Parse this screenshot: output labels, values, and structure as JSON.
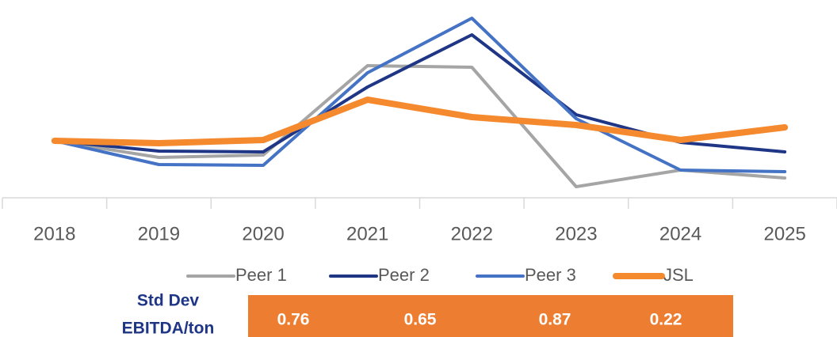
{
  "chart_data": {
    "type": "line",
    "categories": [
      "2018",
      "2019",
      "2020",
      "2021",
      "2022",
      "2023",
      "2024",
      "2025"
    ],
    "series": [
      {
        "name": "Peer 1",
        "color": "#a5a5a5",
        "values": [
          72,
          51,
          54,
          167,
          165,
          14,
          35,
          25
        ]
      },
      {
        "name": "Peer 2",
        "color": "#1f3687",
        "values": [
          72,
          59,
          58,
          140,
          206,
          105,
          70,
          58
        ]
      },
      {
        "name": "Peer 3",
        "color": "#4472c4",
        "values": [
          72,
          42,
          41,
          158,
          227,
          100,
          35,
          33
        ]
      },
      {
        "name": "JSL",
        "color": "#f5892e",
        "values": [
          72,
          69,
          73,
          124,
          102,
          92,
          73,
          89
        ]
      }
    ],
    "ylim": [
      0,
      235
    ],
    "grid": false,
    "legend": "bottom"
  },
  "table": {
    "row_label": [
      "Std Dev",
      "EBITDA/ton"
    ],
    "values": [
      0.76,
      0.65,
      0.87,
      0.22
    ]
  }
}
